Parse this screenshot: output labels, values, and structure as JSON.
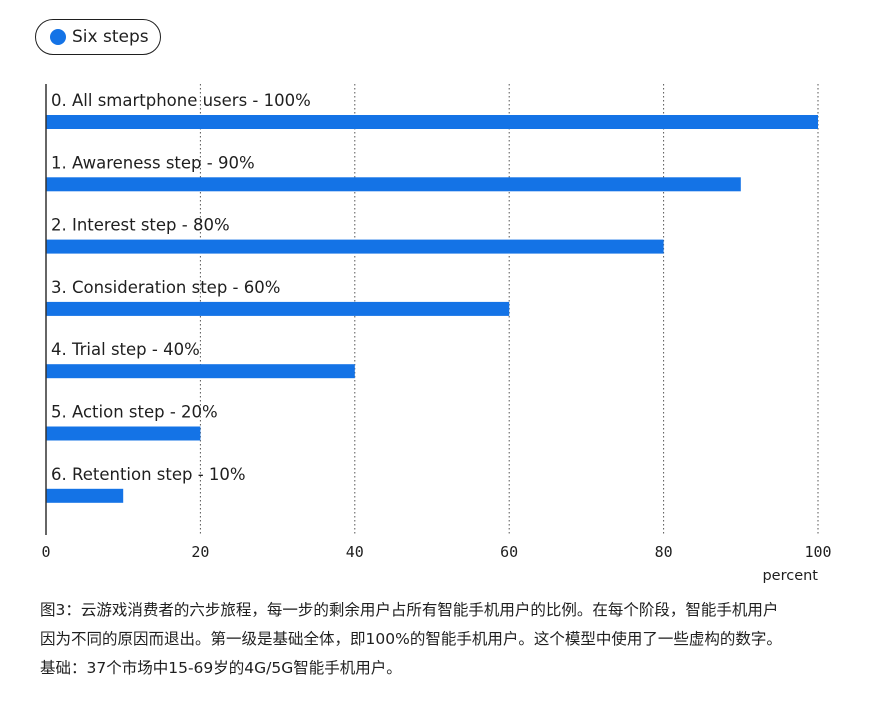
{
  "legend": {
    "label": "Six steps",
    "color": "#1473e6"
  },
  "chart_data": {
    "type": "bar",
    "orientation": "horizontal",
    "categories": [
      "0. All smartphone users - 100%",
      "1. Awareness step - 90%",
      "2. Interest step - 80%",
      "3. Consideration step - 60%",
      "4. Trial step - 40%",
      "5. Action step - 20%",
      "6. Retention step - 10%"
    ],
    "series": [
      {
        "name": "Six steps",
        "values": [
          100,
          90,
          80,
          60,
          40,
          20,
          10
        ],
        "color": "#1473e6"
      }
    ],
    "xlim": [
      0,
      100
    ],
    "xticks": [
      "0",
      "20",
      "40",
      "60",
      "80",
      "100"
    ],
    "xlabel": "percent",
    "grid": "vertical dotted",
    "legend_position": "top-left"
  },
  "caption": {
    "lines": [
      "图3：云游戏消费者的六步旅程，每一步的剩余用户占所有智能手机用户的比例。在每个阶段，智能手机用户",
      "因为不同的原因而退出。第一级是基础全体，即100%的智能手机用户。这个模型中使用了一些虚构的数字。",
      "基础：37个市场中15-69岁的4G/5G智能手机用户。"
    ]
  }
}
